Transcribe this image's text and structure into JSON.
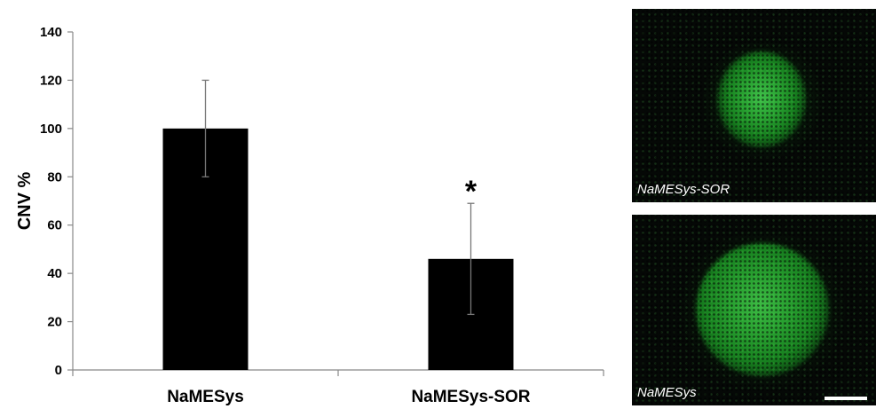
{
  "chart_data": {
    "type": "bar",
    "ylabel": "CNV %",
    "xlabel": "",
    "ylim": [
      0,
      140
    ],
    "yticks": [
      0,
      20,
      40,
      60,
      80,
      100,
      120,
      140
    ],
    "categories": [
      "NaMESys",
      "NaMESys-SOR"
    ],
    "values": [
      100,
      46
    ],
    "error": [
      20,
      23
    ],
    "bar_color": "#000000",
    "significance": [
      {
        "category_index": 1,
        "label": "*"
      }
    ],
    "grid": false,
    "legend": "none"
  },
  "panels": [
    {
      "label": "NaMESys-SOR",
      "stain_color": "#2aa533"
    },
    {
      "label": "NaMESys",
      "stain_color": "#2aa533",
      "scale_bar": true
    }
  ]
}
